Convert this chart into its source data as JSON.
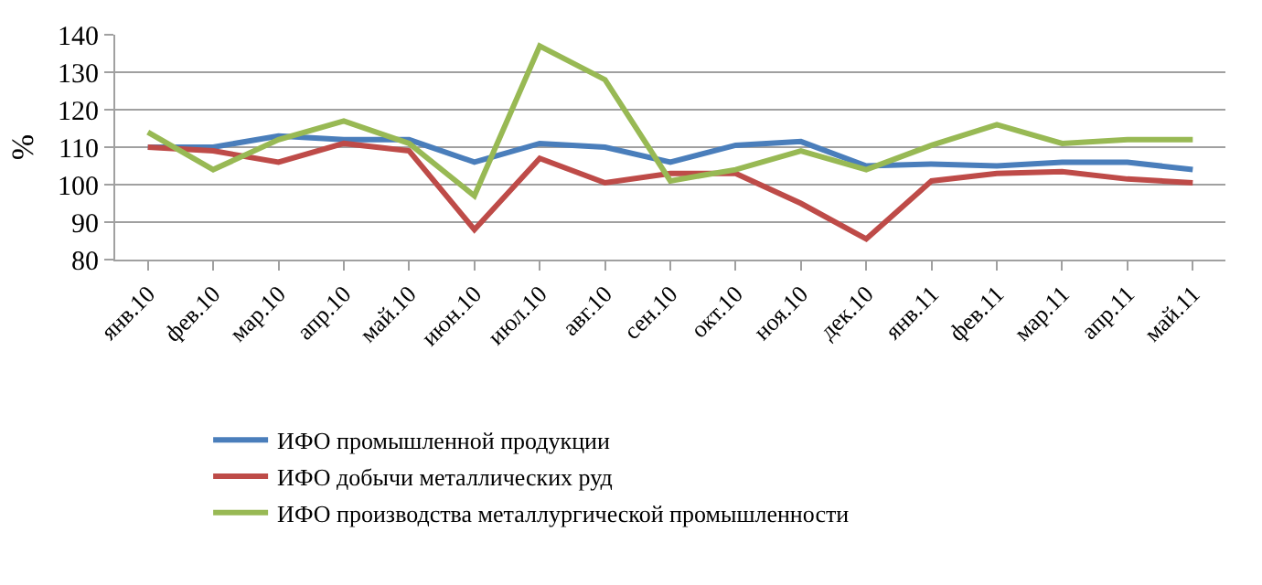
{
  "chart_data": {
    "type": "line",
    "ylabel": "%",
    "categories": [
      "янв.10",
      "фев.10",
      "мар.10",
      "апр.10",
      "май.10",
      "июн.10",
      "июл.10",
      "авг.10",
      "сен.10",
      "окт.10",
      "ноя.10",
      "дек.10",
      "янв.11",
      "фев.11",
      "мар.11",
      "апр.11",
      "май.11"
    ],
    "series": [
      {
        "name": "ИФО промышленной продукции",
        "color": "#4a7ebb",
        "values": [
          110,
          110,
          113,
          112,
          112,
          106,
          111,
          110,
          106,
          110.5,
          111.5,
          105,
          105.5,
          105,
          106,
          106,
          104
        ]
      },
      {
        "name": "ИФО добычи металлических руд",
        "color": "#be4b48",
        "values": [
          110,
          109,
          106,
          111,
          109,
          88,
          107,
          100.5,
          103,
          103,
          95,
          85.5,
          101,
          103,
          103.5,
          101.5,
          100.5
        ]
      },
      {
        "name": "ИФО производства металлургической промышленности",
        "color": "#98b954",
        "values": [
          114,
          104,
          112,
          117,
          111,
          97,
          137,
          128,
          101,
          104,
          109,
          104,
          110.5,
          116,
          111,
          112,
          112
        ]
      }
    ],
    "ylim": [
      80,
      140
    ],
    "yticks": [
      80,
      90,
      100,
      110,
      120,
      130,
      140
    ],
    "grid": "y",
    "legend": "bottom",
    "marker": "none",
    "line_style": "solid"
  }
}
